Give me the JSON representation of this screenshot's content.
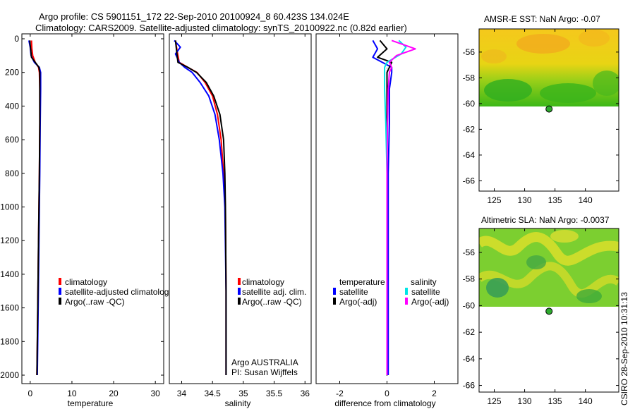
{
  "title_line1": "Argo profile: CS 5901151_172 22-Sep-2010 20100924_8 60.423S 134.024E",
  "title_line2": "Climatology: CARS2009. Satellite-adjusted climatology: synTS_20100922.nc (0.82d earlier)",
  "credit": "CSIRO 28-Sep-2010 10:31:13",
  "colors": {
    "climatology": "#ff0000",
    "satellite": "#0000ff",
    "argo": "#000000",
    "satellite_sal": "#00e5e5",
    "argo_sal": "#ff00ff",
    "float_marker": "#2eaa2e"
  },
  "chart_data": [
    {
      "id": "temperature",
      "type": "line",
      "xlabel": "temperature",
      "ylabel": "",
      "xlim": [
        -2,
        32
      ],
      "ylim": [
        2050,
        -10
      ],
      "xticks": [
        0,
        10,
        20,
        30
      ],
      "yticks": [
        0,
        200,
        400,
        600,
        800,
        1000,
        1200,
        1400,
        1600,
        1800,
        2000
      ],
      "legend": [
        "climatology",
        "satellite-adjusted climatolog",
        "Argo(..raw -QC)"
      ],
      "series": [
        {
          "name": "climatology",
          "color_key": "climatology",
          "points": [
            [
              0.3,
              10
            ],
            [
              0.4,
              60
            ],
            [
              0.6,
              100
            ],
            [
              1.2,
              140
            ],
            [
              2.0,
              170
            ],
            [
              2.2,
              200
            ],
            [
              2.3,
              300
            ],
            [
              2.3,
              500
            ],
            [
              2.2,
              800
            ],
            [
              2.0,
              1200
            ],
            [
              1.8,
              1600
            ],
            [
              1.6,
              2000
            ]
          ]
        },
        {
          "name": "satellite-adjusted climatology",
          "color_key": "satellite",
          "points": [
            [
              -0.3,
              10
            ],
            [
              0.0,
              50
            ],
            [
              0.2,
              100
            ],
            [
              1.0,
              140
            ],
            [
              2.2,
              170
            ],
            [
              2.5,
              200
            ],
            [
              2.5,
              300
            ],
            [
              2.4,
              500
            ],
            [
              2.3,
              800
            ],
            [
              2.1,
              1200
            ],
            [
              1.9,
              1600
            ],
            [
              1.7,
              2000
            ]
          ]
        },
        {
          "name": "Argo(..raw -QC)",
          "color_key": "argo",
          "points": [
            [
              -0.1,
              10
            ],
            [
              0.1,
              60
            ],
            [
              0.3,
              110
            ],
            [
              1.2,
              140
            ],
            [
              2.1,
              170
            ],
            [
              2.3,
              200
            ],
            [
              2.3,
              300
            ],
            [
              2.3,
              500
            ],
            [
              2.2,
              800
            ],
            [
              2.0,
              1200
            ],
            [
              1.8,
              1600
            ],
            [
              1.6,
              2000
            ]
          ]
        }
      ]
    },
    {
      "id": "salinity",
      "type": "line",
      "xlabel": "salinity",
      "ylabel": "",
      "xlim": [
        33.8,
        36.1
      ],
      "ylim": [
        2050,
        -10
      ],
      "xticks": [
        34,
        34.5,
        35,
        35.5,
        36
      ],
      "yticks": [],
      "legend": [
        "climatology",
        "satellite adj. clim.",
        "Argo(..raw -QC)"
      ],
      "annotations": [
        "Argo AUSTRALIA",
        "PI: Susan Wijffels"
      ],
      "series": [
        {
          "name": "climatology",
          "color_key": "climatology",
          "points": [
            [
              33.9,
              10
            ],
            [
              33.93,
              80
            ],
            [
              33.96,
              140
            ],
            [
              34.1,
              170
            ],
            [
              34.25,
              200
            ],
            [
              34.38,
              260
            ],
            [
              34.5,
              340
            ],
            [
              34.58,
              450
            ],
            [
              34.64,
              600
            ],
            [
              34.68,
              800
            ],
            [
              34.71,
              1000
            ],
            [
              34.72,
              1500
            ],
            [
              34.72,
              2000
            ]
          ]
        },
        {
          "name": "satellite adj. clim.",
          "color_key": "satellite",
          "points": [
            [
              33.88,
              10
            ],
            [
              33.98,
              50
            ],
            [
              33.9,
              90
            ],
            [
              33.96,
              140
            ],
            [
              34.05,
              170
            ],
            [
              34.17,
              200
            ],
            [
              34.3,
              260
            ],
            [
              34.44,
              340
            ],
            [
              34.54,
              450
            ],
            [
              34.61,
              600
            ],
            [
              34.67,
              800
            ],
            [
              34.7,
              1000
            ],
            [
              34.72,
              1500
            ],
            [
              34.72,
              2000
            ]
          ]
        },
        {
          "name": "Argo(..raw -QC)",
          "color_key": "argo",
          "points": [
            [
              33.9,
              10
            ],
            [
              33.92,
              80
            ],
            [
              33.94,
              140
            ],
            [
              34.1,
              170
            ],
            [
              34.24,
              200
            ],
            [
              34.4,
              260
            ],
            [
              34.52,
              340
            ],
            [
              34.62,
              450
            ],
            [
              34.68,
              600
            ],
            [
              34.7,
              800
            ],
            [
              34.71,
              1000
            ],
            [
              34.72,
              1500
            ],
            [
              34.72,
              2000
            ]
          ]
        }
      ]
    },
    {
      "id": "difference",
      "type": "line",
      "xlabel": "difference from climatology",
      "ylabel": "",
      "xlim": [
        -3,
        3
      ],
      "ylim": [
        2050,
        -10
      ],
      "xticks": [
        -2,
        0,
        2
      ],
      "yticks": [],
      "legend_left_title": "temperature",
      "legend_right_title": "salinity",
      "legend_left": [
        "satellite",
        "Argo(-adj)"
      ],
      "legend_right": [
        "satellite",
        "Argo(-adj)"
      ],
      "series": [
        {
          "name": "temperature satellite",
          "color_key": "satellite",
          "points": [
            [
              -0.6,
              10
            ],
            [
              -0.4,
              60
            ],
            [
              -0.6,
              110
            ],
            [
              -0.2,
              140
            ],
            [
              0.2,
              170
            ],
            [
              0.2,
              200
            ],
            [
              0.1,
              300
            ],
            [
              0.1,
              500
            ],
            [
              0.05,
              800
            ],
            [
              0.05,
              1200
            ],
            [
              0.05,
              1600
            ],
            [
              0.05,
              2000
            ]
          ]
        },
        {
          "name": "temperature Argo(-adj)",
          "color_key": "argo",
          "points": [
            [
              -0.3,
              10
            ],
            [
              0.0,
              60
            ],
            [
              -0.4,
              110
            ],
            [
              0.2,
              140
            ],
            [
              0.1,
              170
            ],
            [
              0.0,
              200
            ],
            [
              0.0,
              300
            ],
            [
              0.0,
              500
            ],
            [
              0.0,
              800
            ],
            [
              0.0,
              1200
            ],
            [
              0.0,
              1600
            ],
            [
              0.0,
              2000
            ]
          ]
        },
        {
          "name": "salinity satellite",
          "color_key": "satellite_sal",
          "points": [
            [
              0.5,
              10
            ],
            [
              0.8,
              50
            ],
            [
              0.6,
              90
            ],
            [
              0.0,
              140
            ],
            [
              -0.1,
              170
            ],
            [
              -0.1,
              200
            ],
            [
              -0.1,
              300
            ],
            [
              -0.05,
              500
            ],
            [
              0.0,
              800
            ],
            [
              0.0,
              1200
            ],
            [
              0.0,
              1600
            ],
            [
              0.0,
              2000
            ]
          ]
        },
        {
          "name": "salinity Argo(-adj)",
          "color_key": "argo_sal",
          "points": [
            [
              0.2,
              10
            ],
            [
              1.2,
              60
            ],
            [
              0.4,
              100
            ],
            [
              0.1,
              140
            ],
            [
              0.2,
              170
            ],
            [
              0.1,
              200
            ],
            [
              0.05,
              300
            ],
            [
              0.02,
              500
            ],
            [
              0.0,
              800
            ],
            [
              0.0,
              1200
            ],
            [
              0.0,
              1600
            ],
            [
              0.0,
              2000
            ]
          ]
        }
      ]
    },
    {
      "id": "sst_map",
      "type": "heatmap",
      "title": "AMSR-E SST: NaN Argo: -0.07",
      "xlim": [
        122.5,
        145.5
      ],
      "ylim": [
        -66.8,
        -54.2
      ],
      "xticks": [
        125,
        130,
        135,
        140
      ],
      "yticks": [
        -56,
        -58,
        -60,
        -62,
        -64,
        -66
      ],
      "data_extent_lat": [
        -60.1,
        -54.2
      ],
      "float_position": {
        "lon": 134.024,
        "lat": -60.423
      }
    },
    {
      "id": "sla_map",
      "type": "heatmap",
      "title": "Altimetric SLA: NaN Argo: -0.0037",
      "xlim": [
        122.5,
        145.5
      ],
      "ylim": [
        -66.5,
        -54.2
      ],
      "xticks": [
        125,
        130,
        135,
        140
      ],
      "yticks": [
        -56,
        -58,
        -60,
        -62,
        -64,
        -66
      ],
      "data_extent_lat": [
        -60.1,
        -54.2
      ],
      "float_position": {
        "lon": 134.024,
        "lat": -60.423
      }
    }
  ]
}
